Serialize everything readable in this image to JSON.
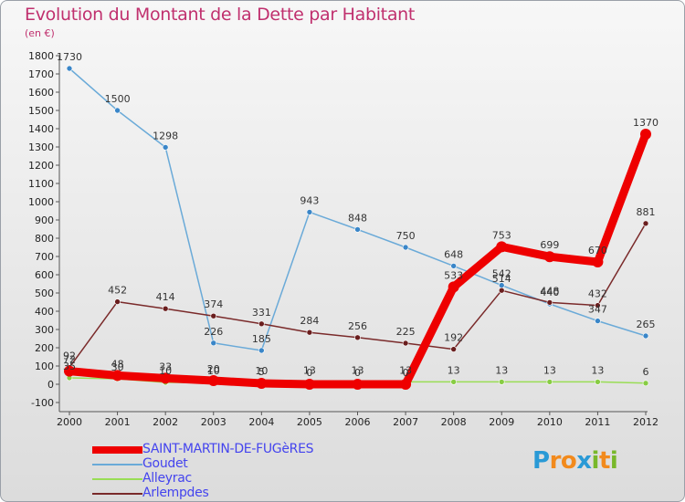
{
  "title": "Evolution du Montant de la Dette par Habitant",
  "subtitle": "(en €)",
  "logo": {
    "letters": [
      "P",
      "r",
      "o",
      "x",
      "i",
      "t",
      "i"
    ],
    "colors": [
      "#2a9ad6",
      "#f28a1c",
      "#f28a1c",
      "#2a9ad6",
      "#78b82a",
      "#f28a1c",
      "#78b82a"
    ]
  },
  "chart_data": {
    "type": "line",
    "title": "Evolution du Montant de la Dette par Habitant",
    "ylabel": "(en €)",
    "xlabel": "",
    "ylim": [
      -100,
      1800
    ],
    "yticks": [
      -100,
      0,
      100,
      200,
      300,
      400,
      500,
      600,
      700,
      800,
      900,
      1000,
      1100,
      1200,
      1300,
      1400,
      1500,
      1600,
      1700,
      1800
    ],
    "x": [
      "2000",
      "2001",
      "2002",
      "2003",
      "2004",
      "2005",
      "2006",
      "2007",
      "2008",
      "2009",
      "2010",
      "2011",
      "2012"
    ],
    "grid": false,
    "legend_position": "bottom-left",
    "series": [
      {
        "name": "SAINT-MARTIN-DE-FUGèRES",
        "color": "#ee0000",
        "width": 9,
        "marker_color": "#ee0000",
        "values": [
          72,
          48,
          33,
          20,
          5,
          0,
          0,
          0,
          533,
          753,
          699,
          670,
          1370
        ],
        "labels": [
          "72",
          "48",
          "33",
          "20",
          "5",
          "0",
          "0",
          "0",
          "533",
          "753",
          "699",
          "670",
          "1370"
        ]
      },
      {
        "name": "Goudet",
        "color": "#6aaad8",
        "width": 1.5,
        "marker_color": "#3a86c8",
        "values": [
          1730,
          1500,
          1298,
          226,
          185,
          943,
          848,
          750,
          648,
          542,
          440,
          347,
          265
        ],
        "labels": [
          "1730",
          "1500",
          "1298",
          "226",
          "185",
          "943",
          "848",
          "750",
          "648",
          "542",
          "440",
          "347",
          "265"
        ]
      },
      {
        "name": "Alleyrac",
        "color": "#99dd55",
        "width": 1.5,
        "marker_color": "#88cc44",
        "values": [
          35,
          30,
          10,
          10,
          10,
          13,
          13,
          13,
          13,
          13,
          13,
          13,
          6
        ],
        "labels": [
          "35",
          "30",
          "10",
          "10",
          "10",
          "13",
          "13",
          "13",
          "13",
          "13",
          "13",
          "13",
          "6"
        ]
      },
      {
        "name": "Arlempdes",
        "color": "#7a2a2a",
        "width": 1.5,
        "marker_color": "#6a1e1e",
        "values": [
          92,
          452,
          414,
          374,
          331,
          284,
          256,
          225,
          192,
          514,
          448,
          432,
          881
        ],
        "labels": [
          "92",
          "452",
          "414",
          "374",
          "331",
          "284",
          "256",
          "225",
          "192",
          "514",
          "448",
          "432",
          "881"
        ]
      }
    ]
  }
}
